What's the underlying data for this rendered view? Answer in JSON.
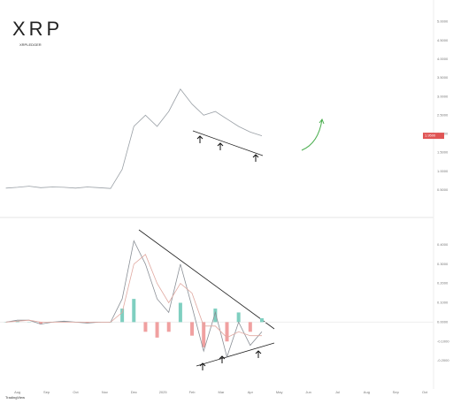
{
  "logo": {
    "title": "XRP",
    "subtitle": "XRPLEDGER"
  },
  "footer": "TradingView",
  "chart_data": [
    {
      "type": "line",
      "name": "price",
      "color": "#9aa0a6",
      "tag_color": "#e05555",
      "x": [
        -0.4,
        0,
        0.4,
        0.8,
        1.2,
        1.6,
        2,
        2.4,
        2.8,
        3.2,
        3.6,
        4,
        4.4,
        4.8,
        5.2,
        5.6,
        6,
        6.4,
        6.8,
        7.2,
        7.6,
        8,
        8.4
      ],
      "values": [
        0.55,
        0.57,
        0.6,
        0.56,
        0.58,
        0.57,
        0.55,
        0.58,
        0.56,
        0.54,
        1.05,
        2.2,
        2.5,
        2.2,
        2.6,
        3.2,
        2.8,
        2.5,
        2.6,
        2.4,
        2.2,
        2.05,
        1.95
      ],
      "price_tag": "1.9500",
      "xlim": [
        -0.6,
        14.3
      ],
      "ylim": [
        0,
        5.3
      ],
      "yticks": [
        {
          "value": 0.5,
          "label": "0.5000"
        },
        {
          "value": 1,
          "label": "1.0000"
        },
        {
          "value": 1.5,
          "label": "1.5000"
        },
        {
          "value": 2,
          "label": "2.0000"
        },
        {
          "value": 2.5,
          "label": "2.5000"
        },
        {
          "value": 3,
          "label": "3.0000"
        },
        {
          "value": 3.5,
          "label": "3.5000"
        },
        {
          "value": 4,
          "label": "4.0000"
        },
        {
          "value": 4.5,
          "label": "4.5000"
        },
        {
          "value": 5,
          "label": "5.0000"
        }
      ]
    },
    {
      "type": "macd",
      "name": "macd",
      "x": [
        -0.4,
        0,
        0.4,
        0.8,
        1.2,
        1.6,
        2,
        2.4,
        2.8,
        3.2,
        3.6,
        4,
        4.4,
        4.8,
        5.2,
        5.6,
        6,
        6.4,
        6.8,
        7.2,
        7.6,
        8,
        8.4
      ],
      "series": [
        {
          "name": "MACD",
          "color": "#8a8f96",
          "values": [
            0,
            0.01,
            0.01,
            -0.01,
            0,
            0.005,
            0,
            -0.005,
            0,
            0,
            0.12,
            0.42,
            0.3,
            0.12,
            0.05,
            0.3,
            0.08,
            -0.15,
            0.05,
            -0.18,
            0,
            -0.12,
            -0.05
          ]
        },
        {
          "name": "Signal",
          "color": "#e0a8a0",
          "values": [
            0,
            0.005,
            0.01,
            0,
            0,
            0,
            0,
            0,
            0,
            0,
            0.05,
            0.3,
            0.35,
            0.2,
            0.1,
            0.2,
            0.15,
            -0.02,
            -0.02,
            -0.08,
            -0.05,
            -0.07,
            -0.07
          ]
        }
      ],
      "histogram": [
        0,
        0.005,
        0,
        -0.01,
        0,
        0.005,
        0,
        -0.005,
        0,
        0,
        0.07,
        0.12,
        -0.05,
        -0.08,
        -0.05,
        0.1,
        -0.07,
        -0.13,
        0.07,
        -0.1,
        0.05,
        -0.05,
        0.02
      ],
      "positive_color": "#7fcfc0",
      "negative_color": "#f0a0a0",
      "xlim": [
        -0.6,
        14.3
      ],
      "ylim": [
        -0.3,
        0.5
      ],
      "yticks": [
        {
          "value": -0.2,
          "label": "-0.2000"
        },
        {
          "value": -0.1,
          "label": "-0.1000"
        },
        {
          "value": 0,
          "label": "0.0000"
        },
        {
          "value": 0.1,
          "label": "0.1000"
        },
        {
          "value": 0.2,
          "label": "0.2000"
        },
        {
          "value": 0.3,
          "label": "0.3000"
        },
        {
          "value": 0.4,
          "label": "0.4000"
        }
      ],
      "xticks": [
        {
          "value": 0,
          "label": "Aug"
        },
        {
          "value": 1,
          "label": "Sep"
        },
        {
          "value": 2,
          "label": "Oct"
        },
        {
          "value": 3,
          "label": "Nov"
        },
        {
          "value": 4,
          "label": "Dec"
        },
        {
          "value": 5,
          "label": "2025"
        },
        {
          "value": 6,
          "label": "Feb"
        },
        {
          "value": 7,
          "label": "Mar"
        },
        {
          "value": 8,
          "label": "Apr"
        },
        {
          "value": 9,
          "label": "May"
        },
        {
          "value": 10,
          "label": "Jun"
        },
        {
          "value": 11,
          "label": "Jul"
        },
        {
          "value": 12,
          "label": "Aug"
        },
        {
          "value": 13,
          "label": "Sep"
        },
        {
          "value": 14,
          "label": "Oct"
        }
      ]
    }
  ]
}
